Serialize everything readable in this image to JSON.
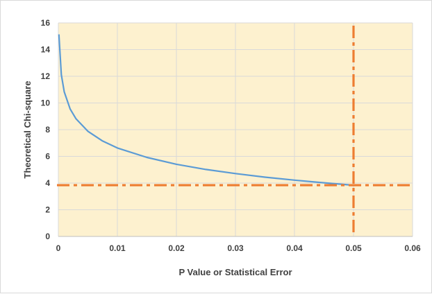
{
  "chart_data": {
    "type": "line",
    "title": "",
    "xlabel": "P Value or Statistical Error",
    "ylabel": "Theoretical Chi-square",
    "xlim": [
      0,
      0.06
    ],
    "ylim": [
      0,
      16
    ],
    "x_ticks": [
      "0",
      "0.01",
      "0.02",
      "0.03",
      "0.04",
      "0.05",
      "0.06"
    ],
    "y_ticks": [
      "0",
      "2",
      "4",
      "6",
      "8",
      "10",
      "12",
      "14",
      "16"
    ],
    "grid": true,
    "legend": "none",
    "colors": {
      "plot_background": "#fdf1cf",
      "series_line": "#5b9bd5",
      "reference_lines": "#ed7d31",
      "gridlines": "#d9d9d9",
      "axis_line": "#bfbfbf"
    },
    "series": [
      {
        "x": [
          0.0001,
          0.0005,
          0.001,
          0.002,
          0.003,
          0.005,
          0.0075,
          0.01,
          0.015,
          0.02,
          0.025,
          0.03,
          0.035,
          0.04,
          0.045,
          0.05
        ],
        "values": [
          15.14,
          12.12,
          10.83,
          9.55,
          8.81,
          7.88,
          7.15,
          6.63,
          5.92,
          5.41,
          5.02,
          4.71,
          4.44,
          4.22,
          4.02,
          3.84
        ]
      }
    ],
    "reference_lines": [
      {
        "orientation": "horizontal",
        "y": 3.84,
        "style": "dash-dot"
      },
      {
        "orientation": "vertical",
        "x": 0.05,
        "style": "dash-dot"
      }
    ]
  }
}
